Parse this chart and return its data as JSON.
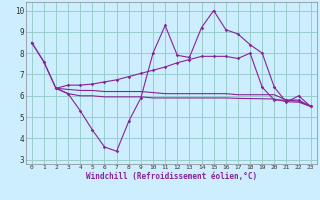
{
  "xlabel": "Windchill (Refroidissement éolien,°C)",
  "background_color": "#cceeff",
  "grid_color": "#99cccc",
  "line_color": "#882299",
  "xlim": [
    -0.5,
    23.5
  ],
  "ylim": [
    2.8,
    10.4
  ],
  "xticks": [
    0,
    1,
    2,
    3,
    4,
    5,
    6,
    7,
    8,
    9,
    10,
    11,
    12,
    13,
    14,
    15,
    16,
    17,
    18,
    19,
    20,
    21,
    22,
    23
  ],
  "yticks": [
    3,
    4,
    5,
    6,
    7,
    8,
    9,
    10
  ],
  "line1_x": [
    0,
    1,
    2,
    3,
    4,
    5,
    6,
    7,
    8,
    9,
    10,
    11,
    12,
    13,
    14,
    15,
    16,
    17,
    18,
    19,
    20,
    21,
    22,
    23
  ],
  "line1_y": [
    8.5,
    7.6,
    6.35,
    6.1,
    5.3,
    4.4,
    3.6,
    3.4,
    4.8,
    5.9,
    8.0,
    9.3,
    7.9,
    7.8,
    9.2,
    10.0,
    9.1,
    8.9,
    8.4,
    8.0,
    6.4,
    5.7,
    6.0,
    5.5
  ],
  "line2_x": [
    0,
    1,
    2,
    3,
    4,
    5,
    6,
    7,
    8,
    9,
    10,
    11,
    12,
    13,
    14,
    15,
    16,
    17,
    18,
    19,
    20,
    21,
    22,
    23
  ],
  "line2_y": [
    8.5,
    7.6,
    6.35,
    6.5,
    6.5,
    6.55,
    6.65,
    6.75,
    6.9,
    7.05,
    7.2,
    7.35,
    7.55,
    7.7,
    7.85,
    7.85,
    7.85,
    7.75,
    8.0,
    6.4,
    5.8,
    5.8,
    5.8,
    5.5
  ],
  "line3_x": [
    2,
    3,
    4,
    5,
    6,
    7,
    8,
    9,
    10,
    11,
    12,
    13,
    14,
    15,
    16,
    17,
    18,
    19,
    20,
    21,
    22,
    23
  ],
  "line3_y": [
    6.35,
    6.3,
    6.25,
    6.25,
    6.2,
    6.2,
    6.2,
    6.2,
    6.15,
    6.1,
    6.1,
    6.1,
    6.1,
    6.1,
    6.1,
    6.05,
    6.05,
    6.05,
    6.05,
    5.8,
    5.75,
    5.5
  ],
  "line4_x": [
    2,
    3,
    4,
    5,
    6,
    7,
    8,
    9,
    10,
    11,
    12,
    13,
    14,
    15,
    16,
    17,
    18,
    19,
    20,
    21,
    22,
    23
  ],
  "line4_y": [
    6.35,
    6.1,
    6.0,
    6.0,
    5.95,
    5.95,
    5.95,
    5.95,
    5.9,
    5.9,
    5.9,
    5.9,
    5.9,
    5.9,
    5.9,
    5.88,
    5.87,
    5.86,
    5.85,
    5.72,
    5.7,
    5.5
  ]
}
